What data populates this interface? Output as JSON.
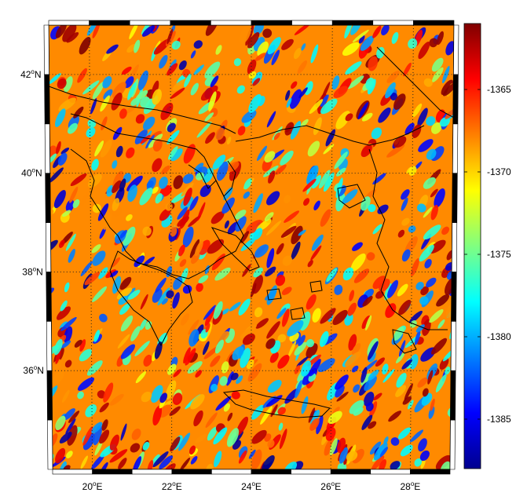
{
  "map": {
    "longitude_labels": [
      {
        "deg": "20",
        "unit": "o",
        "hem": "E"
      },
      {
        "deg": "22",
        "unit": "o",
        "hem": "E"
      },
      {
        "deg": "24",
        "unit": "o",
        "hem": "E"
      },
      {
        "deg": "26",
        "unit": "o",
        "hem": "E"
      },
      {
        "deg": "28",
        "unit": "o",
        "hem": "E"
      }
    ],
    "latitude_labels": [
      {
        "deg": "42",
        "unit": "o",
        "hem": "N"
      },
      {
        "deg": "40",
        "unit": "o",
        "hem": "N"
      },
      {
        "deg": "38",
        "unit": "o",
        "hem": "N"
      },
      {
        "deg": "36",
        "unit": "o",
        "hem": "N"
      }
    ],
    "longitude_range": [
      19.0,
      29.0
    ],
    "latitude_range": [
      34.0,
      43.0
    ],
    "gridlines": "dotted",
    "frame": "black-white alternating border",
    "field": "dense mottled noise pattern with mostly red, orange, yellow, cyan and blue patches",
    "coastline_color": "#000000"
  },
  "colorbar": {
    "colormap": "jet",
    "range": [
      -1388,
      -1361
    ],
    "tick_labels": [
      "-1365",
      "-1370",
      "-1375",
      "-1380",
      "-1385"
    ],
    "tick_values": [
      -1365,
      -1370,
      -1375,
      -1380,
      -1385
    ],
    "placement": "right"
  }
}
